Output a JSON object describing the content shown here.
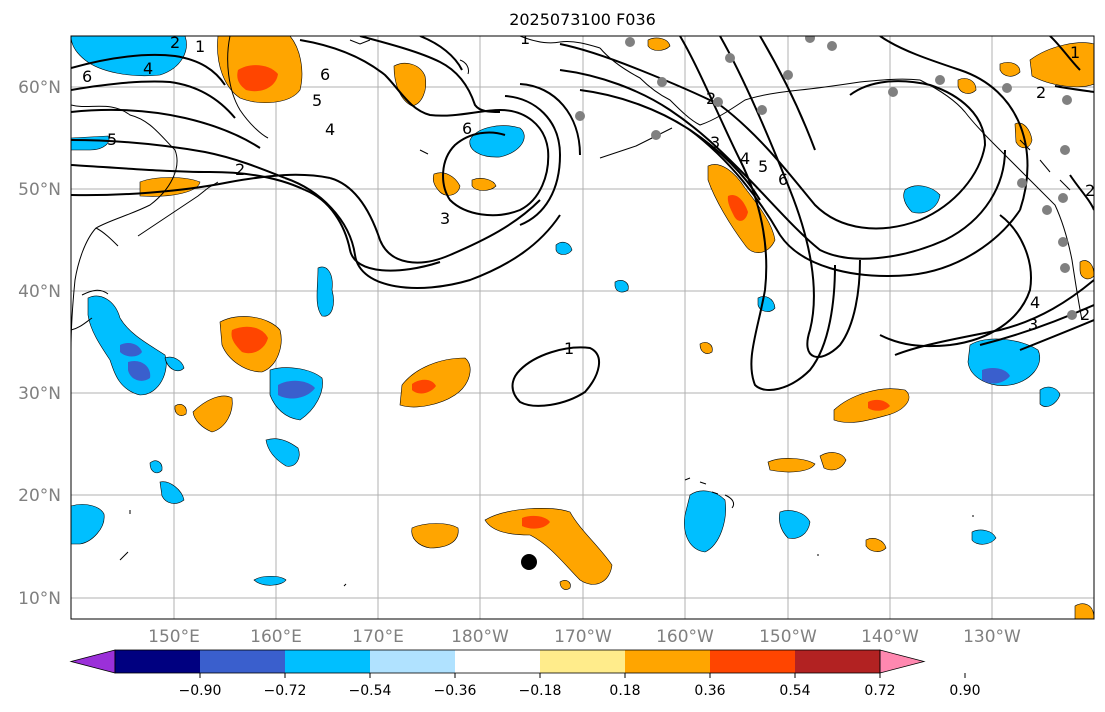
{
  "title": "2025073100 F036",
  "map": {
    "lat_labels": [
      "60°N",
      "50°N",
      "40°N",
      "30°N",
      "20°N",
      "10°N"
    ],
    "lon_labels": [
      "150°E",
      "160°E",
      "170°E",
      "180°W",
      "170°W",
      "160°W",
      "150°W",
      "140°W",
      "130°W"
    ],
    "contour_labels": [
      "1",
      "2",
      "3",
      "4",
      "5",
      "6"
    ],
    "colors": {
      "contour": "#000000",
      "grid": "#b0b0b0",
      "coast": "#000000",
      "station": "#808080",
      "axis_label": "#808080"
    }
  },
  "colorbar": {
    "tick_labels": [
      "−0.90",
      "−0.72",
      "−0.54",
      "−0.36",
      "−0.18",
      "0.18",
      "0.36",
      "0.54",
      "0.72",
      "0.90"
    ],
    "colors": [
      "#9b30d9",
      "#000080",
      "#3a5fcd",
      "#00bfff",
      "#b0e2ff",
      "#ffffff",
      "#ffec8b",
      "#ffa500",
      "#ff4500",
      "#b22222",
      "#ff88b0"
    ]
  }
}
